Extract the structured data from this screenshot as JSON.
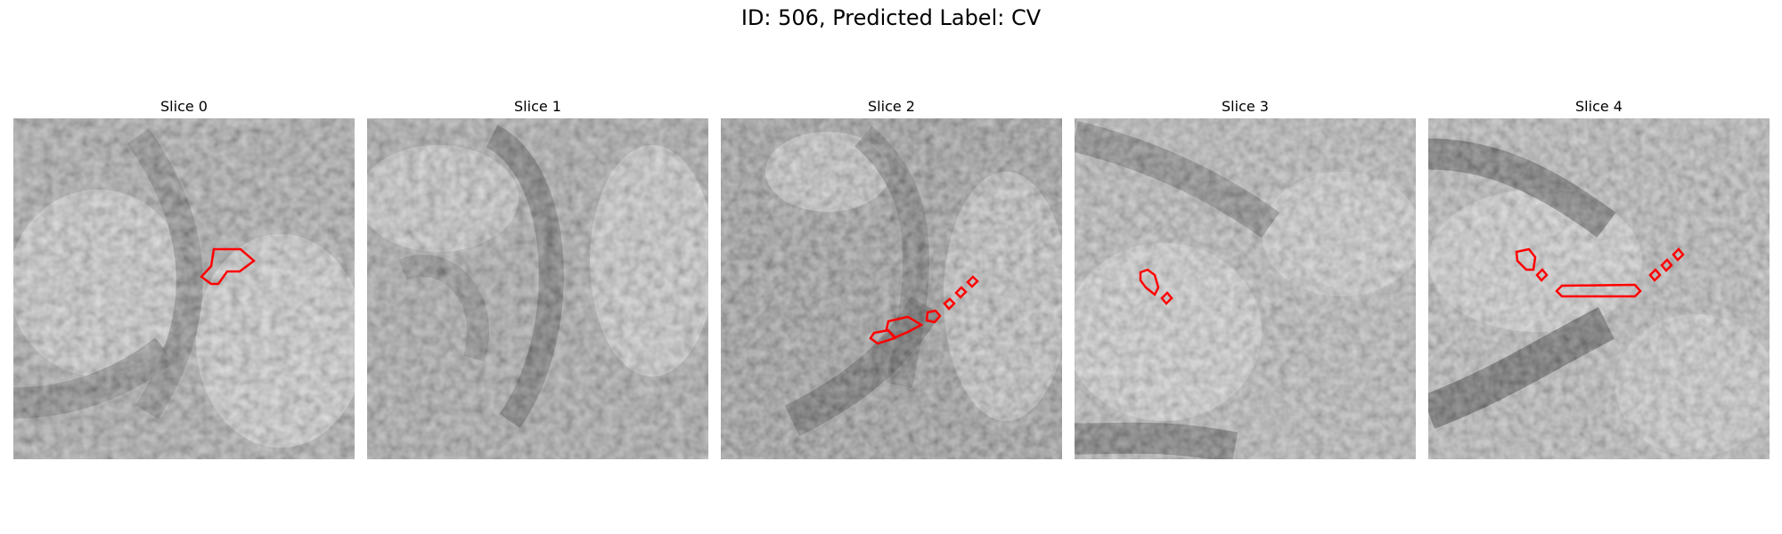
{
  "figure": {
    "title": "ID: 506, Predicted Label: CV"
  },
  "slices": [
    {
      "label": "Slice 0"
    },
    {
      "label": "Slice 1"
    },
    {
      "label": "Slice 2"
    },
    {
      "label": "Slice 3"
    },
    {
      "label": "Slice 4"
    }
  ],
  "contour_color": "#ff0000",
  "colormap": "grayscale"
}
